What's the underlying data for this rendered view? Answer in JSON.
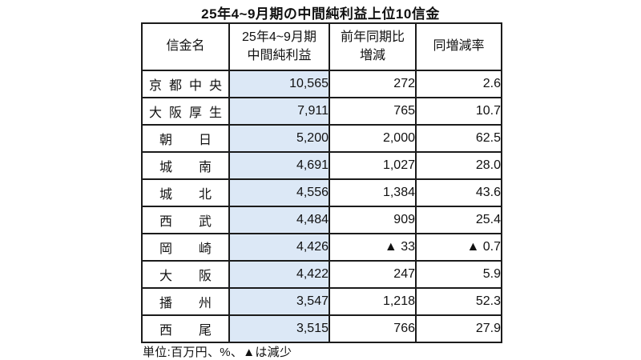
{
  "title": "25年4~9月期の中間純利益上位10信金",
  "footer_note": "単位:百万円、%、▲は減少",
  "colors": {
    "highlight_column_bg": "#dce8f6",
    "border": "#1b1b1b",
    "text": "#111111",
    "background": "#ffffff"
  },
  "table": {
    "columns": [
      {
        "label": "信金名"
      },
      {
        "line1": "25年4~9月期",
        "line2": "中間純利益"
      },
      {
        "line1": "前年同期比",
        "line2": "増減"
      },
      {
        "label": "同増減率"
      }
    ],
    "rows": [
      {
        "name": "京都中央",
        "profit": "10,565",
        "change": "272",
        "rate": "2.6"
      },
      {
        "name": "大阪厚生",
        "profit": "7,911",
        "change": "765",
        "rate": "10.7"
      },
      {
        "name": "朝日",
        "profit": "5,200",
        "change": "2,000",
        "rate": "62.5"
      },
      {
        "name": "城南",
        "profit": "4,691",
        "change": "1,027",
        "rate": "28.0"
      },
      {
        "name": "城北",
        "profit": "4,556",
        "change": "1,384",
        "rate": "43.6"
      },
      {
        "name": "西武",
        "profit": "4,484",
        "change": "909",
        "rate": "25.4"
      },
      {
        "name": "岡崎",
        "profit": "4,426",
        "change": "▲ 33",
        "rate": "▲ 0.7"
      },
      {
        "name": "大阪",
        "profit": "4,422",
        "change": "247",
        "rate": "5.9"
      },
      {
        "name": "播州",
        "profit": "3,547",
        "change": "1,218",
        "rate": "52.3"
      },
      {
        "name": "西尾",
        "profit": "3,515",
        "change": "766",
        "rate": "27.9"
      }
    ]
  },
  "chart_data": {
    "type": "table",
    "title": "25年4~9月期の中間純利益上位10信金",
    "columns": [
      "信金名",
      "25年4~9月期中間純利益",
      "前年同期比増減",
      "同増減率"
    ],
    "rows": [
      [
        "京都中央",
        10565,
        272,
        2.6
      ],
      [
        "大阪厚生",
        7911,
        765,
        10.7
      ],
      [
        "朝日",
        5200,
        2000,
        62.5
      ],
      [
        "城南",
        4691,
        1027,
        28.0
      ],
      [
        "城北",
        4556,
        1384,
        43.6
      ],
      [
        "西武",
        4484,
        909,
        25.4
      ],
      [
        "岡崎",
        4426,
        -33,
        -0.7
      ],
      [
        "大阪",
        4422,
        247,
        5.9
      ],
      [
        "播州",
        3547,
        1218,
        52.3
      ],
      [
        "西尾",
        3515,
        766,
        27.9
      ]
    ],
    "note": "単位:百万円、%、▲は減少",
    "negative_marker": "▲",
    "layout_hints": {
      "highlighted_column_index": 1,
      "numeric_alignment": "right",
      "grid": "all-borders"
    }
  }
}
